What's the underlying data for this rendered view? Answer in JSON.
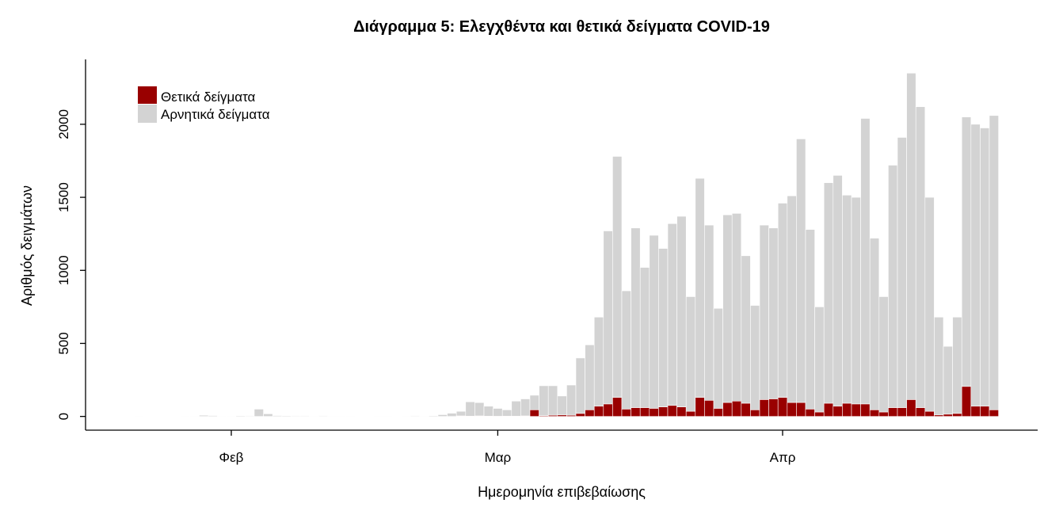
{
  "chart_data": {
    "type": "bar",
    "stacked": true,
    "title": "Διάγραμμα 5: Ελεγχθέντα και θετικά δείγματα COVID-19",
    "xlabel": "Ημερομηνία επιβεβαίωσης",
    "ylabel": "Αριθμός δειγμάτων",
    "ylim": [
      0,
      2350
    ],
    "y_ticks": [
      0,
      500,
      1000,
      1500,
      2000
    ],
    "x_ticks": [
      {
        "label": "Φεβ",
        "date": "02-01"
      },
      {
        "label": "Μαρ",
        "date": "03-01"
      },
      {
        "label": "Απρ",
        "date": "04-01"
      }
    ],
    "legend": "top-left",
    "grid": false,
    "x": [
      "01-22",
      "01-23",
      "01-24",
      "01-25",
      "01-26",
      "01-27",
      "01-28",
      "01-29",
      "01-30",
      "01-31",
      "02-01",
      "02-02",
      "02-03",
      "02-04",
      "02-05",
      "02-06",
      "02-07",
      "02-08",
      "02-09",
      "02-10",
      "02-11",
      "02-12",
      "02-13",
      "02-14",
      "02-15",
      "02-16",
      "02-17",
      "02-18",
      "02-19",
      "02-20",
      "02-21",
      "02-22",
      "02-23",
      "02-24",
      "02-25",
      "02-26",
      "02-27",
      "02-28",
      "02-29",
      "03-01",
      "03-02",
      "03-03",
      "03-04",
      "03-05",
      "03-06",
      "03-07",
      "03-08",
      "03-09",
      "03-10",
      "03-11",
      "03-12",
      "03-13",
      "03-14",
      "03-15",
      "03-16",
      "03-17",
      "03-18",
      "03-19",
      "03-20",
      "03-21",
      "03-22",
      "03-23",
      "03-24",
      "03-25",
      "03-26",
      "03-27",
      "03-28",
      "03-29",
      "03-30",
      "03-31",
      "04-01",
      "04-02",
      "04-03",
      "04-04",
      "04-05",
      "04-06",
      "04-07",
      "04-08",
      "04-09",
      "04-10",
      "04-11",
      "04-12",
      "04-13",
      "04-14",
      "04-15",
      "04-16",
      "04-17",
      "04-18",
      "04-19",
      "04-20",
      "04-21",
      "04-22",
      "04-23",
      "04-24"
    ],
    "series": [
      {
        "name": "Θετικά δείγματα",
        "color": "#990000",
        "values": [
          0,
          0,
          0,
          0,
          0,
          0,
          0,
          0,
          0,
          0,
          0,
          0,
          0,
          0,
          0,
          0,
          0,
          0,
          0,
          0,
          0,
          0,
          0,
          0,
          0,
          0,
          0,
          0,
          0,
          0,
          0,
          0,
          0,
          0,
          0,
          3,
          2,
          3,
          2,
          1,
          2,
          2,
          3,
          45,
          5,
          8,
          10,
          8,
          20,
          45,
          70,
          85,
          130,
          50,
          60,
          60,
          55,
          65,
          75,
          65,
          35,
          130,
          110,
          55,
          95,
          105,
          90,
          45,
          115,
          120,
          130,
          95,
          95,
          50,
          30,
          90,
          70,
          90,
          85,
          85,
          45,
          30,
          60,
          60,
          115,
          60,
          35,
          10,
          15,
          20,
          205,
          70,
          70,
          45
        ]
      },
      {
        "name": "Αρνητικά δείγματα",
        "color": "#d3d3d3",
        "values": [
          2,
          0,
          0,
          0,
          0,
          3,
          2,
          8,
          6,
          3,
          2,
          5,
          4,
          50,
          18,
          6,
          5,
          4,
          4,
          3,
          4,
          3,
          3,
          2,
          0,
          0,
          3,
          3,
          0,
          3,
          4,
          2,
          5,
          12,
          22,
          32,
          98,
          92,
          68,
          54,
          43,
          103,
          117,
          100,
          205,
          202,
          130,
          207,
          380,
          445,
          610,
          1185,
          1650,
          810,
          1230,
          960,
          1185,
          1085,
          1245,
          1305,
          785,
          1500,
          1200,
          685,
          1285,
          1285,
          1010,
          715,
          1195,
          1170,
          1330,
          1415,
          1805,
          1230,
          720,
          1510,
          1580,
          1425,
          1415,
          1955,
          1175,
          790,
          1660,
          1850,
          2235,
          2060,
          1465,
          670,
          465,
          660,
          1845,
          1930,
          1905,
          2015
        ]
      }
    ]
  }
}
